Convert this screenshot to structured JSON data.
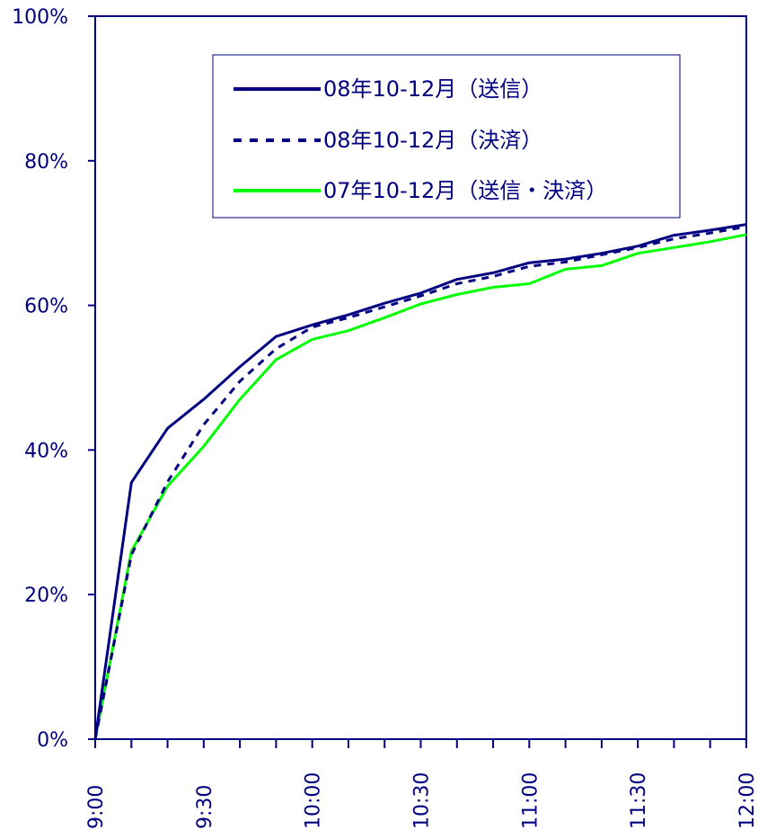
{
  "chart_data": {
    "type": "line",
    "x": [
      "9:00",
      "9:10",
      "9:20",
      "9:30",
      "9:40",
      "9:50",
      "10:00",
      "10:10",
      "10:20",
      "10:30",
      "10:40",
      "10:50",
      "11:00",
      "11:10",
      "11:20",
      "11:30",
      "11:40",
      "11:50",
      "12:00"
    ],
    "x_tick_labels": [
      "9:00",
      "9:30",
      "10:00",
      "10:30",
      "11:00",
      "11:30",
      "12:00"
    ],
    "y_tick_labels": [
      "0%",
      "20%",
      "40%",
      "60%",
      "80%",
      "100%"
    ],
    "ylim": [
      0,
      100
    ],
    "grid": false,
    "legend_position": "top-right",
    "series": [
      {
        "name": "08年10-12月（送信）",
        "color": "#000080",
        "style": "solid",
        "values": [
          0,
          35.5,
          43,
          47,
          51.5,
          55.7,
          57.3,
          58.7,
          60.3,
          61.7,
          63.6,
          64.5,
          65.9,
          66.4,
          67.2,
          68.2,
          69.7,
          70.4,
          71.2
        ]
      },
      {
        "name": "08年10-12月（決済）",
        "color": "#000080",
        "style": "dashed",
        "values": [
          0,
          25.5,
          35.6,
          43.5,
          49.5,
          54,
          57,
          58.3,
          59.8,
          61.3,
          63,
          64,
          65.4,
          66,
          67,
          68,
          69.2,
          70,
          70.9
        ]
      },
      {
        "name": "07年10-12月（送信・決済）",
        "color": "#00ff00",
        "style": "solid",
        "values": [
          0,
          26,
          35,
          40.5,
          47,
          52.5,
          55.3,
          56.5,
          58.3,
          60.2,
          61.5,
          62.5,
          63,
          65,
          65.5,
          67.2,
          68,
          68.8,
          69.8
        ]
      }
    ]
  }
}
